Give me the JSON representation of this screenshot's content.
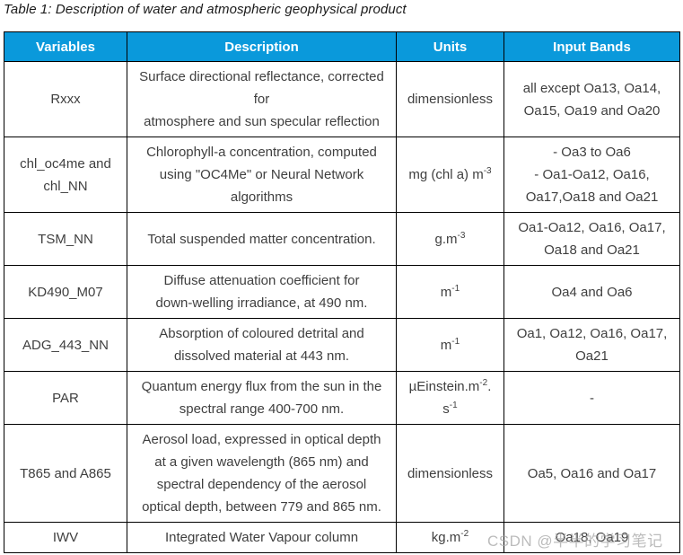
{
  "caption": "Table 1: Description of water and atmospheric geophysical product",
  "watermark": "CSDN @半半的学习笔记",
  "colors": {
    "header_bg": "#0a99db",
    "header_text": "#ffffff",
    "cell_text": "#3f3f3f",
    "border": "#000000",
    "watermark_text": "#a6a6a6"
  },
  "table": {
    "columns": [
      "Variables",
      "Description",
      "Units",
      "Input Bands"
    ],
    "rows": [
      {
        "variable": [
          "Rxxx"
        ],
        "description": [
          "Surface directional reflectance, corrected",
          "for",
          "atmosphere and sun specular reflection"
        ],
        "units": [
          {
            "t": "dimensionless"
          }
        ],
        "input_bands": [
          "all except Oa13, Oa14,",
          "Oa15, Oa19 and Oa20"
        ]
      },
      {
        "variable": [
          "chl_oc4me and",
          "chl_NN"
        ],
        "description": [
          "Chlorophyll-a concentration, computed",
          "using \"OC4Me\" or Neural Network",
          "algorithms"
        ],
        "units": [
          {
            "t": "mg (chl a) m"
          },
          {
            "t": "-3",
            "sup": true
          }
        ],
        "input_bands": [
          "- Oa3 to Oa6",
          "- Oa1-Oa12, Oa16,",
          "Oa17,Oa18 and Oa21"
        ]
      },
      {
        "variable": [
          "TSM_NN"
        ],
        "description": [
          "Total suspended matter concentration."
        ],
        "units": [
          {
            "t": "g.m"
          },
          {
            "t": "-3",
            "sup": true
          }
        ],
        "input_bands": [
          "Oa1-Oa12, Oa16, Oa17,",
          "Oa18 and Oa21"
        ]
      },
      {
        "variable": [
          "KD490_M07"
        ],
        "description": [
          "Diffuse attenuation coefficient for",
          "down-welling irradiance, at 490 nm."
        ],
        "units": [
          {
            "t": "m"
          },
          {
            "t": "-1",
            "sup": true
          }
        ],
        "input_bands": [
          "Oa4 and Oa6"
        ]
      },
      {
        "variable": [
          "ADG_443_NN"
        ],
        "description": [
          "Absorption of coloured detrital and",
          "dissolved material at 443 nm."
        ],
        "units": [
          {
            "t": "m"
          },
          {
            "t": "-1",
            "sup": true
          }
        ],
        "input_bands": [
          "Oa1, Oa12, Oa16, Oa17,",
          "Oa21"
        ]
      },
      {
        "variable": [
          "PAR"
        ],
        "description": [
          "Quantum energy flux from the sun in the",
          "spectral range 400-700 nm."
        ],
        "units": [
          {
            "t": "µEinstein.m"
          },
          {
            "t": "-2",
            "sup": true
          },
          {
            "t": "."
          },
          {
            "br": true
          },
          {
            "t": "s"
          },
          {
            "t": "-1",
            "sup": true
          }
        ],
        "input_bands": [
          "-"
        ]
      },
      {
        "variable": [
          "T865 and A865"
        ],
        "description": [
          "Aerosol load, expressed in optical depth",
          "at a given wavelength (865 nm) and",
          "spectral dependency of the aerosol",
          "optical depth, between 779 and 865 nm."
        ],
        "units": [
          {
            "t": "dimensionless"
          }
        ],
        "input_bands": [
          "Oa5, Oa16 and Oa17"
        ]
      },
      {
        "variable": [
          "IWV"
        ],
        "description": [
          "Integrated Water Vapour column"
        ],
        "units": [
          {
            "t": "kg.m"
          },
          {
            "t": "-2",
            "sup": true
          }
        ],
        "input_bands": [
          "Oa18, Oa19"
        ]
      }
    ]
  }
}
